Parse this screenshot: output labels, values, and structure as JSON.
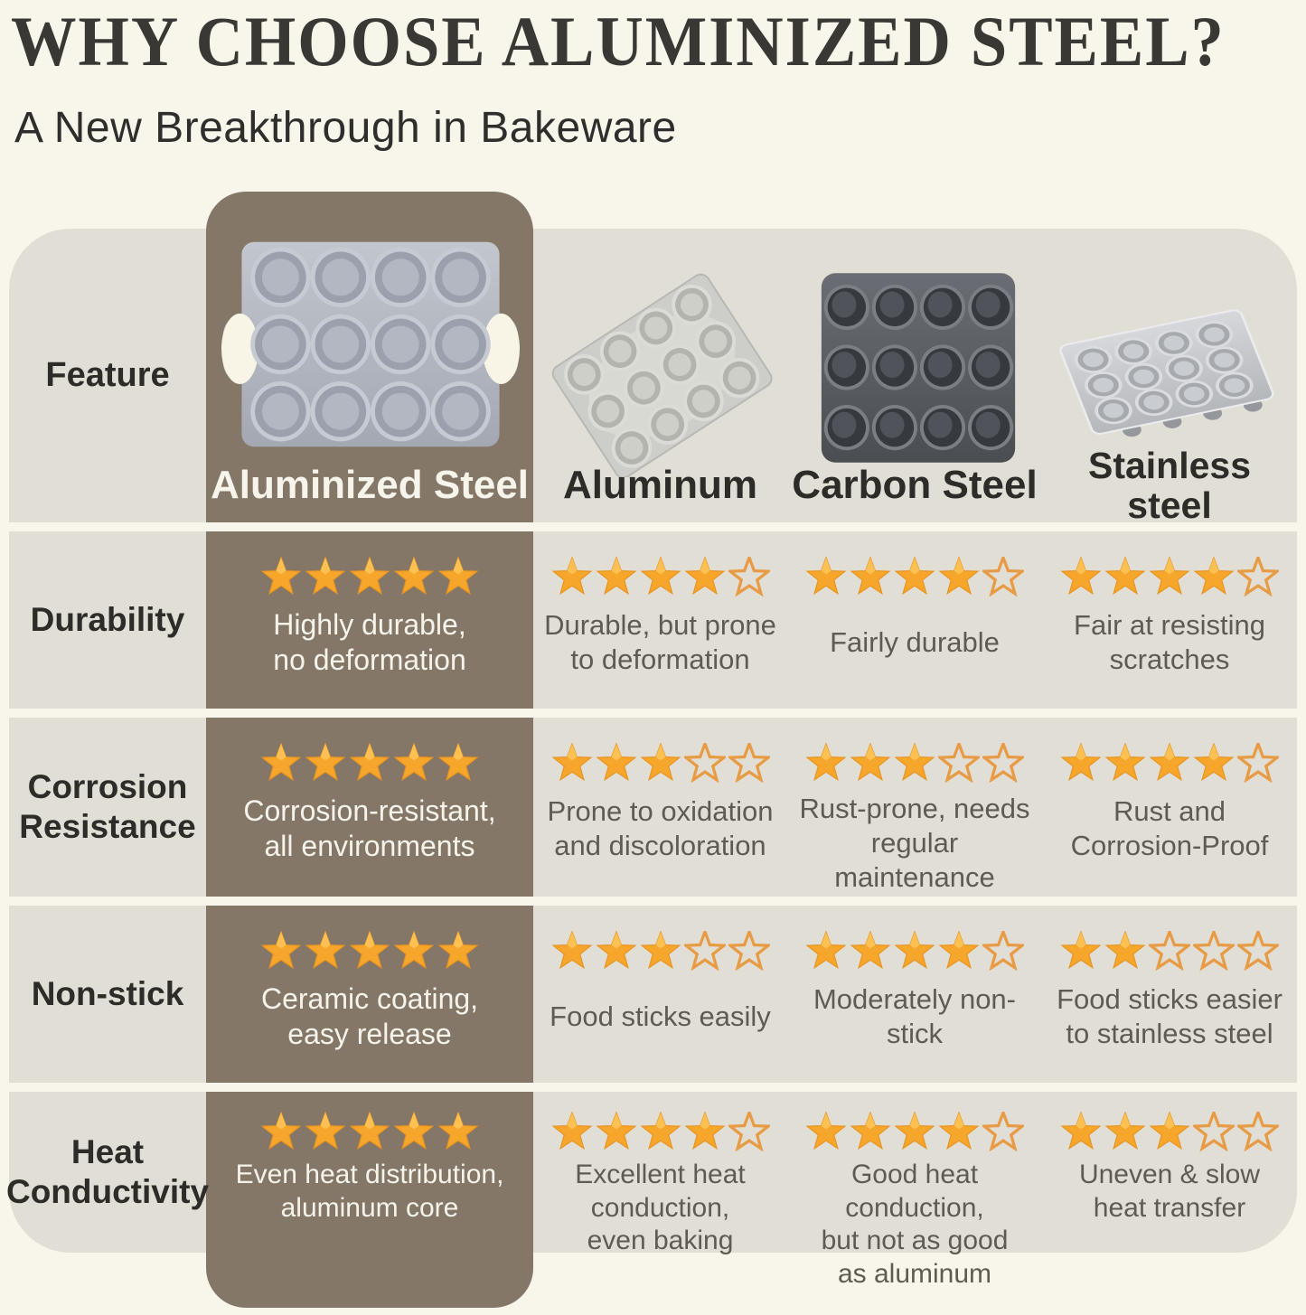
{
  "chart_data": {
    "type": "table",
    "title": "WHY CHOOSE ALUMINIZED STEEL?",
    "subtitle": "A New Breakthrough in Bakeware",
    "rating_max": 5,
    "header": {
      "feature_label": "Feature",
      "columns": [
        {
          "label": "Aluminized Steel",
          "highlight": true,
          "pan_icon": "aluminized-steel-muffin-pan"
        },
        {
          "label": "Aluminum",
          "highlight": false,
          "pan_icon": "aluminum-muffin-pan"
        },
        {
          "label": "Carbon Steel",
          "highlight": false,
          "pan_icon": "carbon-steel-muffin-pan"
        },
        {
          "label": "Stainless\nsteel",
          "highlight": false,
          "pan_icon": "stainless-steel-muffin-pan"
        }
      ]
    },
    "rows": [
      {
        "feature": "Durability",
        "cells": [
          {
            "stars": 5,
            "text": "Highly durable,\nno deformation"
          },
          {
            "stars": 4,
            "text": "Durable, but prone\nto deformation"
          },
          {
            "stars": 4,
            "text": "Fairly durable"
          },
          {
            "stars": 4,
            "text": "Fair at resisting\nscratches"
          }
        ]
      },
      {
        "feature": "Corrosion\nResistance",
        "cells": [
          {
            "stars": 5,
            "text": "Corrosion-resistant,\nall environments"
          },
          {
            "stars": 3,
            "text": "Prone to oxidation\nand discoloration"
          },
          {
            "stars": 3,
            "text": "Rust-prone, needs\nregular maintenance"
          },
          {
            "stars": 4,
            "text": "Rust and\nCorrosion-Proof"
          }
        ]
      },
      {
        "feature": "Non-stick",
        "cells": [
          {
            "stars": 5,
            "text": "Ceramic coating,\neasy release"
          },
          {
            "stars": 3,
            "text": "Food sticks easily"
          },
          {
            "stars": 4,
            "text": "Moderately non-stick"
          },
          {
            "stars": 2,
            "text": "Food sticks easier\nto stainless steel"
          }
        ]
      },
      {
        "feature": "Heat\nConductivity",
        "cells": [
          {
            "stars": 5,
            "text": "Even heat distribution,\naluminum core"
          },
          {
            "stars": 4,
            "text": "Excellent heat\nconduction,\neven baking"
          },
          {
            "stars": 4,
            "text": "Good heat conduction,\nbut not as good\nas aluminum"
          },
          {
            "stars": 3,
            "text": "Uneven & slow\nheat transfer"
          }
        ]
      }
    ],
    "colors": {
      "background": "#f8f6ea",
      "row_band": "#e1ded6",
      "highlight_column": "#847768",
      "star_filled": "#f6a62a",
      "star_outline_stroke": "#e89b45",
      "heading_text": "#2d2c29",
      "note_text": "#5e5b54",
      "highlight_text": "#f6f3eb"
    }
  }
}
